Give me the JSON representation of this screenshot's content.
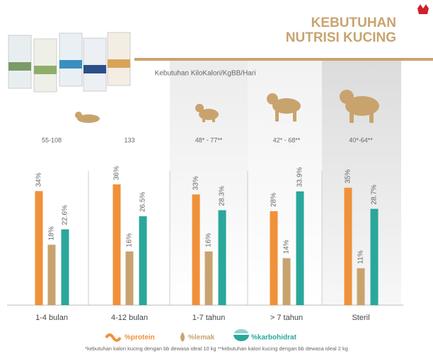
{
  "chart_data": {
    "type": "bar",
    "title": [
      "KEBUTUHAN",
      "NUTRISI KUCING"
    ],
    "subtitle": "Kebutuhan KiloKalori/KgBB/Hari",
    "calories": [
      "55-108",
      "133",
      "48* - 77**",
      "42* - 68**",
      "40*-64**"
    ],
    "categories": [
      "1-4 bulan",
      "4-12 bulan",
      "1-7 tahun",
      "> 7 tahun",
      "Steril"
    ],
    "series": [
      {
        "name": "%protein",
        "color": "#f0913a",
        "values": [
          34,
          36,
          33,
          28,
          35
        ],
        "value_labels": [
          "34%",
          "36%",
          "33%",
          "28%",
          "35%"
        ]
      },
      {
        "name": "%lemak",
        "color": "#c9a36e",
        "values": [
          18,
          16,
          16,
          14,
          11
        ],
        "value_labels": [
          "18%",
          "16%",
          "16%",
          "14%",
          "11%"
        ]
      },
      {
        "name": "%karbohidrat",
        "color": "#2aa79b",
        "values": [
          22.6,
          26.5,
          28.3,
          33.9,
          28.7
        ],
        "value_labels": [
          "22.6%",
          "26.5%",
          "28.3%",
          "33.9%",
          "28.7%"
        ]
      }
    ],
    "ylim": [
      0,
      40
    ],
    "footnote": "*kebutuhan kalori kucing dengan bb dewasa ideal 10 kg **kebutuhan kalori kucing dengan bb dewasa ideal 2 kg"
  }
}
